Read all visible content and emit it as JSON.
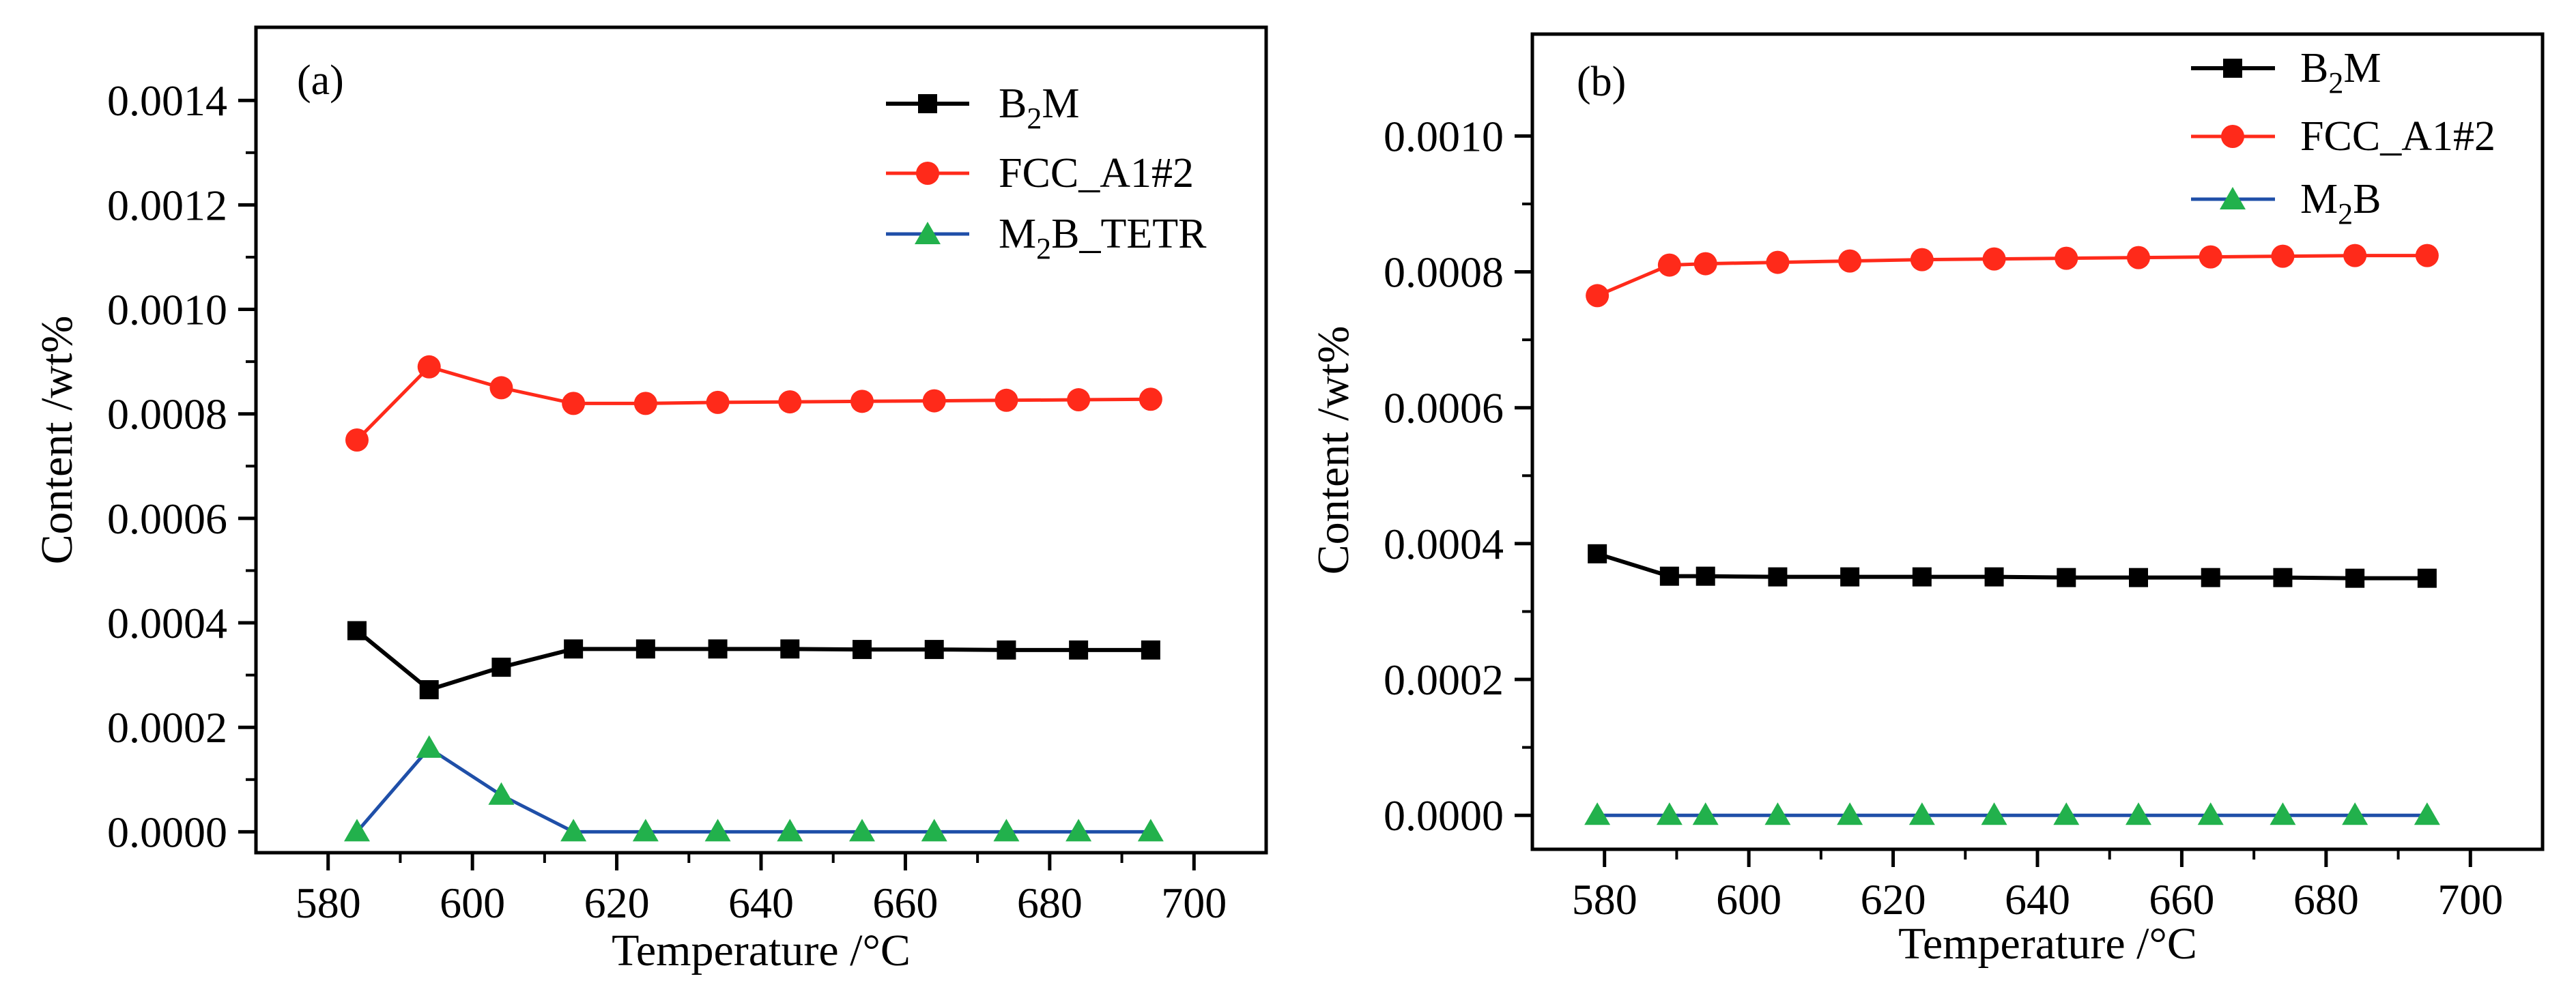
{
  "chart_data": [
    {
      "type": "line",
      "panel_label": "(a)",
      "xlabel": "Temperature /°C",
      "ylabel": "Content  /wt%",
      "xlim": [
        570,
        710
      ],
      "ylim": [
        -4e-05,
        0.00154
      ],
      "x_ticks": [
        "580",
        "600",
        "620",
        "640",
        "660",
        "680",
        "700"
      ],
      "y_ticks": [
        "0.0000",
        "0.0002",
        "0.0004",
        "0.0006",
        "0.0008",
        "0.0010",
        "0.0012",
        "0.0014"
      ],
      "legend_position": "top-right",
      "series": [
        {
          "name": "B_2M",
          "name_parts": [
            "B",
            "2",
            "M",
            ""
          ],
          "color": "#000000",
          "marker": "square",
          "x": [
            584,
            594,
            604,
            614,
            624,
            634,
            644,
            654,
            664,
            674,
            684,
            694
          ],
          "values": [
            0.000385,
            0.000272,
            0.000315,
            0.00035,
            0.00035,
            0.00035,
            0.00035,
            0.000349,
            0.000349,
            0.000348,
            0.000348,
            0.000348
          ]
        },
        {
          "name": "FCC_A1#2",
          "name_parts": [
            "FCC_A1#2",
            "",
            "",
            ""
          ],
          "color": "#ff2a1a",
          "marker": "circle",
          "x": [
            584,
            594,
            604,
            614,
            624,
            634,
            644,
            654,
            664,
            674,
            684,
            694
          ],
          "values": [
            0.00075,
            0.00089,
            0.00085,
            0.00082,
            0.00082,
            0.000822,
            0.000823,
            0.000824,
            0.000825,
            0.000826,
            0.000827,
            0.000828
          ]
        },
        {
          "name": "M_2B_TETR",
          "name_parts": [
            "M",
            "2",
            "B_TETR",
            ""
          ],
          "color": "#22b14c",
          "line_color": "#1f4fa8",
          "marker": "triangle",
          "x": [
            584,
            594,
            604,
            614,
            624,
            634,
            644,
            654,
            664,
            674,
            684,
            694
          ],
          "values": [
            0.0,
            0.00016,
            7e-05,
            0.0,
            0.0,
            0.0,
            0.0,
            0.0,
            0.0,
            0.0,
            0.0,
            0.0
          ]
        }
      ]
    },
    {
      "type": "line",
      "panel_label": "(b)",
      "xlabel": "Temperature /°C",
      "ylabel": "Content /wt%",
      "xlim": [
        570,
        710
      ],
      "ylim": [
        -5e-05,
        0.00115
      ],
      "x_ticks": [
        "580",
        "600",
        "620",
        "640",
        "660",
        "680",
        "700"
      ],
      "y_ticks": [
        "0.0000",
        "0.0002",
        "0.0004",
        "0.0006",
        "0.0008",
        "0.0010"
      ],
      "legend_position": "top-right",
      "series": [
        {
          "name": "B_2M",
          "name_parts": [
            "B",
            "2",
            "M",
            ""
          ],
          "color": "#000000",
          "marker": "square",
          "x": [
            579,
            589,
            594,
            604,
            614,
            624,
            634,
            644,
            654,
            664,
            674,
            684,
            694
          ],
          "values": [
            0.000385,
            0.000352,
            0.000352,
            0.000351,
            0.000351,
            0.000351,
            0.000351,
            0.00035,
            0.00035,
            0.00035,
            0.00035,
            0.000349,
            0.000349
          ]
        },
        {
          "name": "FCC_A1#2",
          "name_parts": [
            "FCC_A1#2",
            "",
            "",
            ""
          ],
          "color": "#ff2a1a",
          "marker": "circle",
          "x": [
            579,
            589,
            594,
            604,
            614,
            624,
            634,
            644,
            654,
            664,
            674,
            684,
            694
          ],
          "values": [
            0.000765,
            0.00081,
            0.000812,
            0.000814,
            0.000816,
            0.000818,
            0.000819,
            0.00082,
            0.000821,
            0.000822,
            0.000823,
            0.000824,
            0.000824
          ]
        },
        {
          "name": "M_2B",
          "name_parts": [
            "M",
            "2",
            "B",
            ""
          ],
          "color": "#22b14c",
          "line_color": "#1f4fa8",
          "marker": "triangle",
          "x": [
            579,
            589,
            594,
            604,
            614,
            624,
            634,
            644,
            654,
            664,
            674,
            684,
            694
          ],
          "values": [
            0.0,
            0.0,
            0.0,
            0.0,
            0.0,
            0.0,
            0.0,
            0.0,
            0.0,
            0.0,
            0.0,
            0.0,
            0.0
          ]
        }
      ]
    }
  ]
}
